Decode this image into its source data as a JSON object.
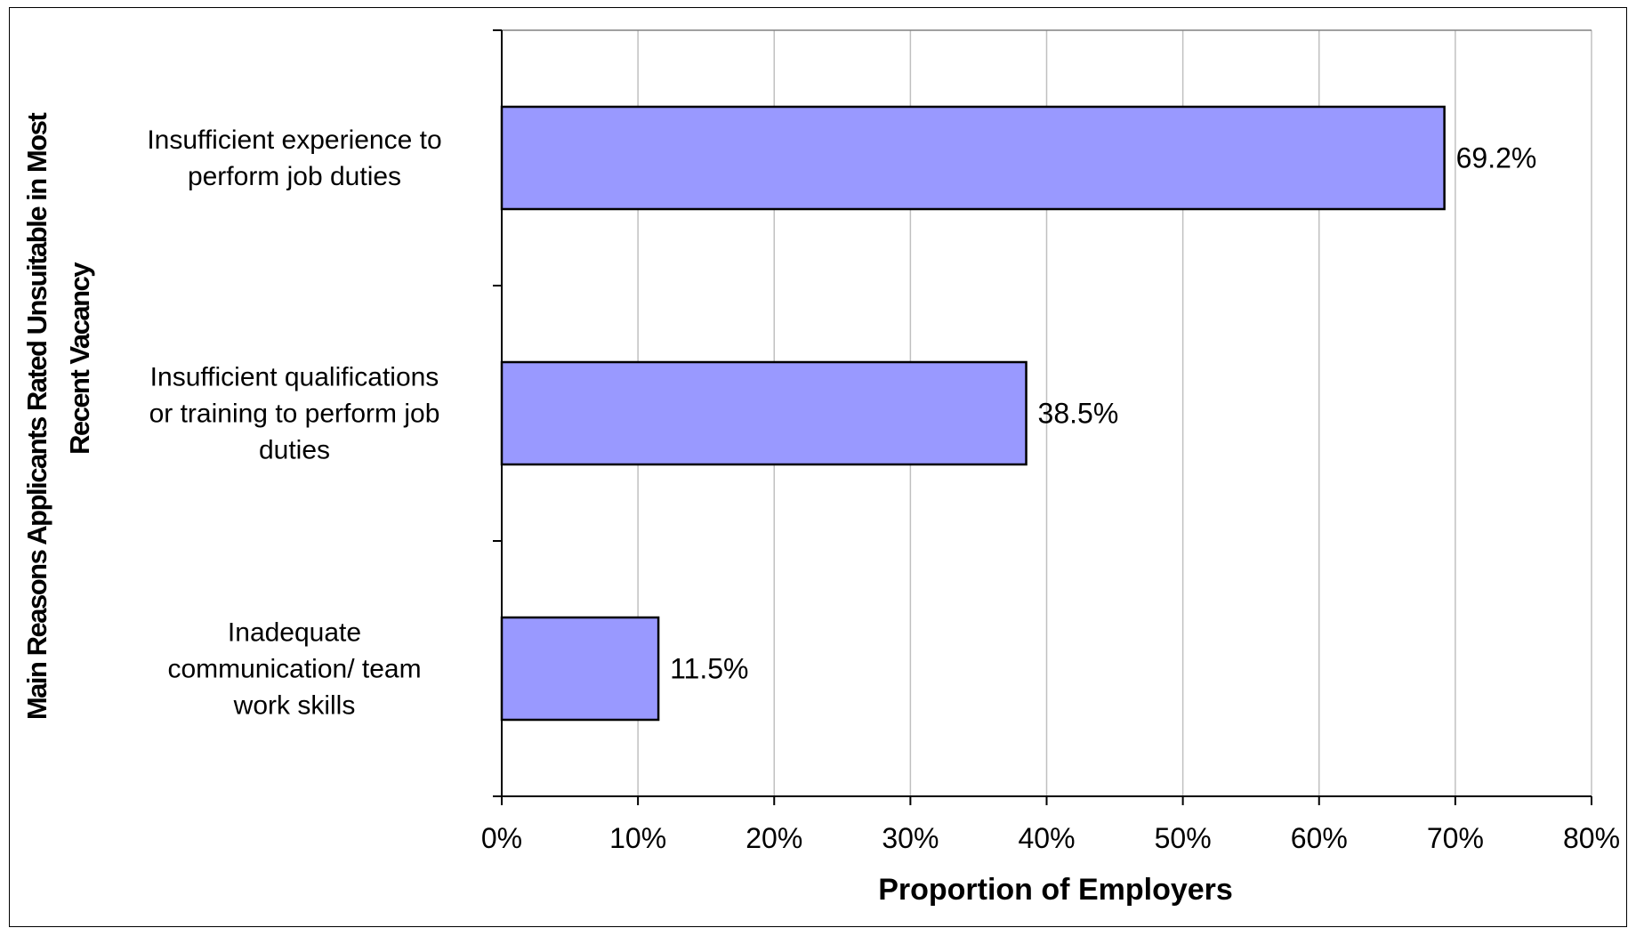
{
  "chart_data": {
    "type": "bar",
    "orientation": "horizontal",
    "categories": [
      [
        "Insufficient experience to",
        "perform job duties"
      ],
      [
        "Insufficient qualifications",
        "or training to perform job",
        "duties"
      ],
      [
        "Inadequate",
        "communication/ team",
        "work skills"
      ]
    ],
    "values": [
      69.2,
      38.5,
      11.5
    ],
    "data_labels": [
      "69.2%",
      "38.5%",
      "11.5%"
    ],
    "xlabel": "Proportion of Employers",
    "ylabel_lines": [
      "Main Reasons Applicants Rated Unsuitable in Most",
      "Recent Vacancy"
    ],
    "xlim": [
      0,
      80
    ],
    "xticks": [
      0,
      10,
      20,
      30,
      40,
      50,
      60,
      70,
      80
    ],
    "xtick_labels": [
      "0%",
      "10%",
      "20%",
      "30%",
      "40%",
      "50%",
      "60%",
      "70%",
      "80%"
    ],
    "grid": "vertical",
    "legend": "none",
    "bar_color": "#9999ff",
    "bar_edge_color": "#000000",
    "grid_color": "#c0c0c0"
  }
}
